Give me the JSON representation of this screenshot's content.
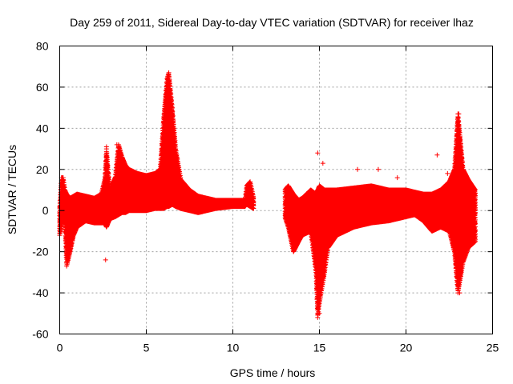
{
  "chart_data": {
    "type": "scatter",
    "title": "Day 259 of 2011, Sidereal Day-to-day VTEC variation (SDTVAR) for receiver lhaz",
    "xlabel": "GPS time / hours",
    "ylabel": "SDTVAR / TECUs",
    "xlim": [
      0,
      25
    ],
    "ylim": [
      -60,
      80
    ],
    "xticks": [
      "0",
      "5",
      "10",
      "15",
      "20",
      "25"
    ],
    "yticks": [
      "-60",
      "-40",
      "-20",
      "0",
      "20",
      "40",
      "60",
      "80"
    ],
    "grid": true,
    "marker": "+",
    "color": "#ff0000",
    "series": [
      {
        "name": "SDTVAR",
        "note": "dense band described by hour, lower and upper envelope (TECU) plus isolated outliers",
        "envelope": [
          [
            0.0,
            -12,
            2
          ],
          [
            0.1,
            -8,
            16
          ],
          [
            0.2,
            -4,
            16
          ],
          [
            0.3,
            -6,
            10
          ],
          [
            0.4,
            -27,
            8
          ],
          [
            0.6,
            -20,
            6
          ],
          [
            0.8,
            -12,
            7
          ],
          [
            1.0,
            -8,
            8
          ],
          [
            1.5,
            -5,
            7
          ],
          [
            2.0,
            -6,
            6
          ],
          [
            2.4,
            -6,
            8
          ],
          [
            2.6,
            -6,
            15
          ],
          [
            2.7,
            -8,
            30
          ],
          [
            2.9,
            -4,
            10
          ],
          [
            3.2,
            -3,
            16
          ],
          [
            3.4,
            -2,
            32
          ],
          [
            3.6,
            -1,
            26
          ],
          [
            3.8,
            -1,
            22
          ],
          [
            4.0,
            0,
            20
          ],
          [
            4.5,
            0,
            18
          ],
          [
            5.0,
            0,
            17
          ],
          [
            5.5,
            1,
            18
          ],
          [
            5.8,
            1,
            20
          ],
          [
            6.0,
            1,
            45
          ],
          [
            6.2,
            2,
            64
          ],
          [
            6.3,
            2,
            67
          ],
          [
            6.5,
            3,
            50
          ],
          [
            6.7,
            2,
            30
          ],
          [
            7.0,
            1,
            15
          ],
          [
            7.5,
            0,
            10
          ],
          [
            8.0,
            -1,
            7
          ],
          [
            9.0,
            1,
            5
          ],
          [
            10.0,
            2,
            5
          ],
          [
            10.7,
            2,
            5
          ],
          [
            10.8,
            3,
            12
          ],
          [
            11.0,
            2,
            14
          ],
          [
            11.2,
            1,
            6
          ],
          [
            13.0,
            -3,
            10
          ],
          [
            13.2,
            -8,
            12
          ],
          [
            13.5,
            -20,
            8
          ],
          [
            13.8,
            -15,
            5
          ],
          [
            14.0,
            -12,
            6
          ],
          [
            14.5,
            -10,
            10
          ],
          [
            14.8,
            -30,
            8
          ],
          [
            14.9,
            -52,
            10
          ],
          [
            15.0,
            -45,
            12
          ],
          [
            15.3,
            -30,
            10
          ],
          [
            15.5,
            -18,
            10
          ],
          [
            16.0,
            -12,
            10
          ],
          [
            17.0,
            -8,
            11
          ],
          [
            18.0,
            -6,
            12
          ],
          [
            19.0,
            -5,
            10
          ],
          [
            20.0,
            -3,
            10
          ],
          [
            20.5,
            -2,
            9
          ],
          [
            21.0,
            -5,
            8
          ],
          [
            21.5,
            -10,
            8
          ],
          [
            22.0,
            -8,
            10
          ],
          [
            22.5,
            -10,
            14
          ],
          [
            22.8,
            -20,
            20
          ],
          [
            23.0,
            -40,
            47
          ],
          [
            23.3,
            -25,
            20
          ],
          [
            23.6,
            -18,
            15
          ],
          [
            24.0,
            -15,
            10
          ]
        ],
        "outliers": [
          [
            2.65,
            -24
          ],
          [
            2.7,
            31
          ],
          [
            14.9,
            28
          ],
          [
            15.2,
            23
          ],
          [
            15.0,
            -50
          ],
          [
            21.8,
            27
          ],
          [
            22.4,
            18
          ],
          [
            23.05,
            47
          ],
          [
            23.1,
            -40
          ],
          [
            23.2,
            -22
          ],
          [
            3.3,
            32
          ],
          [
            17.2,
            20
          ],
          [
            18.4,
            20
          ],
          [
            19.5,
            16
          ]
        ]
      }
    ]
  }
}
